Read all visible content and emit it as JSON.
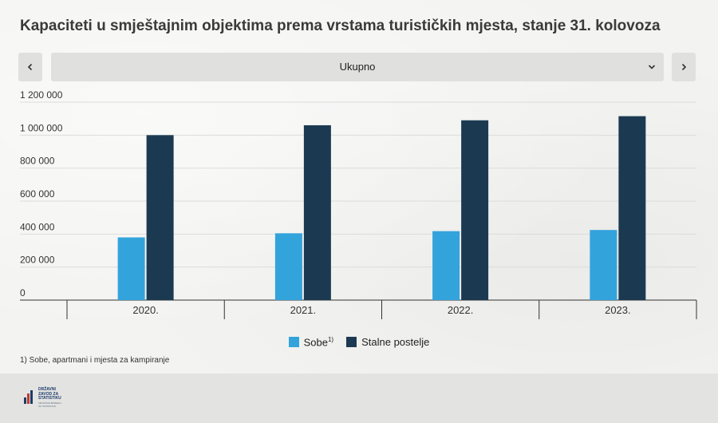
{
  "title": "Kapaciteti u smještajnim objektima prema vrstama turističkih mjesta, stanje 31. kolovoza",
  "filter": {
    "selected": "Ukupno",
    "prev_icon": "chevron-left-icon",
    "next_icon": "chevron-right-icon"
  },
  "legend": {
    "sobe": "Sobe",
    "sobe_note": "1)",
    "postelje": "Stalne postelje"
  },
  "footnote": "1) Sobe, apartmani i mjesta za kampiranje",
  "logo": {
    "lines": [
      "DRŽAVNI",
      "ZAVOD ZA",
      "STATISTIKU"
    ],
    "sub": [
      "CROATIAN BUREAU",
      "OF STATISTICS"
    ]
  },
  "colors": {
    "sobe": "#33a3dc",
    "postelje": "#1b3a52"
  },
  "chart_data": {
    "type": "bar",
    "categories": [
      "2020.",
      "2021.",
      "2022.",
      "2023."
    ],
    "series": [
      {
        "name": "Sobe",
        "values": [
          380000,
          405000,
          418000,
          425000
        ]
      },
      {
        "name": "Stalne postelje",
        "values": [
          1000000,
          1060000,
          1090000,
          1115000
        ]
      }
    ],
    "ylim": [
      0,
      1200000
    ],
    "yticks": [
      0,
      200000,
      400000,
      600000,
      800000,
      1000000,
      1200000
    ],
    "ytick_labels": [
      "0",
      "200 000",
      "400 000",
      "600 000",
      "800 000",
      "1 000 000",
      "1 200 000"
    ],
    "grid": true,
    "legend_position": "bottom"
  }
}
